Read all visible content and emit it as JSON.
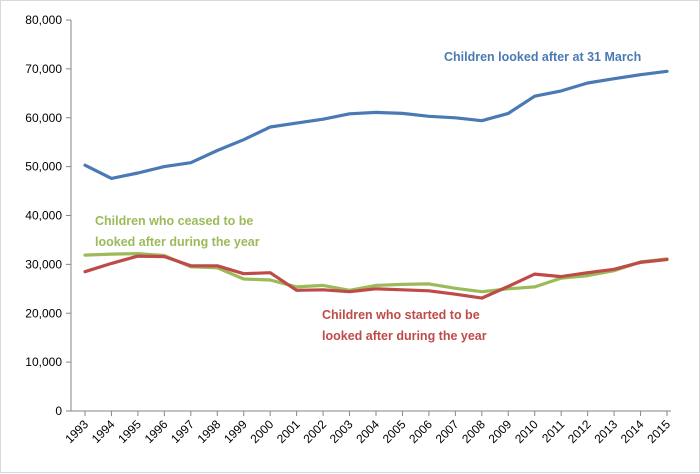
{
  "chart_data": {
    "type": "line",
    "title": "",
    "xlabel": "",
    "ylabel": "",
    "ylim": [
      0,
      80000
    ],
    "yticks": [
      0,
      10000,
      20000,
      30000,
      40000,
      50000,
      60000,
      70000,
      80000
    ],
    "ytick_labels": [
      "0",
      "10,000",
      "20,000",
      "30,000",
      "40,000",
      "50,000",
      "60,000",
      "70,000",
      "80,000"
    ],
    "grid": false,
    "legend": "none (direct labels on series)",
    "x": [
      "1993",
      "1994",
      "1995",
      "1996",
      "1997",
      "1998",
      "1999",
      "2000",
      "2001",
      "2002",
      "2003",
      "2004",
      "2005",
      "2006",
      "2007",
      "2008",
      "2009",
      "2010",
      "2011",
      "2012",
      "2013",
      "2014",
      "2015"
    ],
    "series": [
      {
        "name": "Children looked after at 31 March",
        "color": "#4a7ab3",
        "values": [
          50300,
          47600,
          48700,
          50000,
          50800,
          53300,
          55500,
          58100,
          58900,
          59700,
          60800,
          61100,
          60900,
          60300,
          60000,
          59400,
          60900,
          64400,
          65500,
          67100,
          68000,
          68800,
          69500
        ]
      },
      {
        "name": "Children who ceased to be looked after during the year",
        "color": "#9bbb59",
        "values": [
          31900,
          32100,
          32200,
          31800,
          29500,
          29300,
          27000,
          26800,
          25400,
          25700,
          24700,
          25700,
          25900,
          26000,
          25100,
          24400,
          25000,
          25400,
          27200,
          27700,
          28700,
          30500,
          31100
        ]
      },
      {
        "name": "Children who started to be looked after during the year",
        "color": "#be4b48",
        "values": [
          28500,
          30200,
          31700,
          31600,
          29700,
          29700,
          28100,
          28300,
          24700,
          24800,
          24400,
          25000,
          24800,
          24600,
          23900,
          23100,
          25500,
          28000,
          27500,
          28300,
          29000,
          30400,
          31000
        ]
      }
    ]
  }
}
